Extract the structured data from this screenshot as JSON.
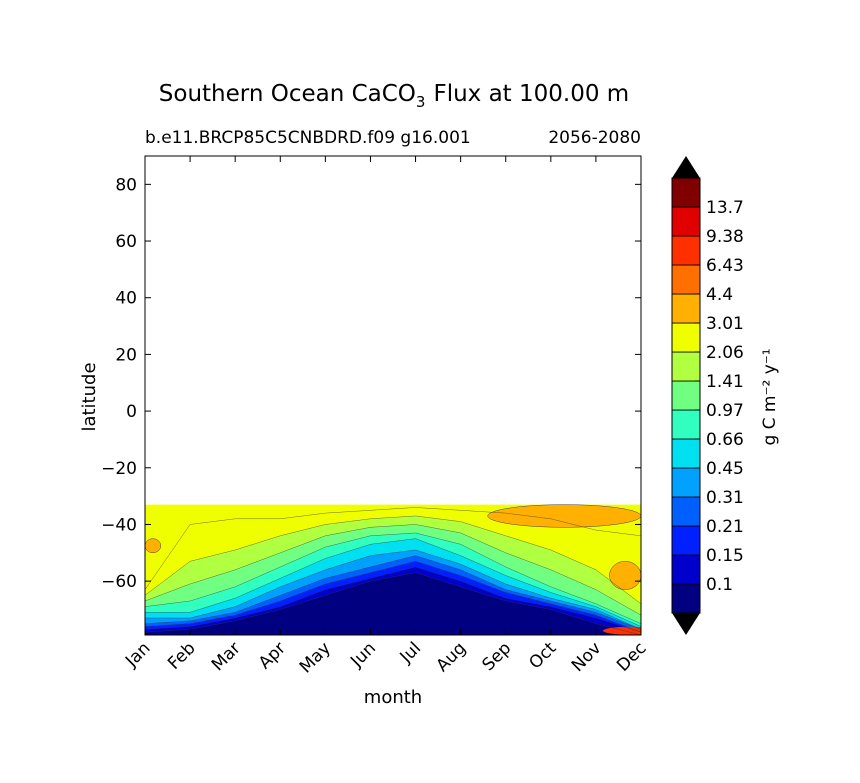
{
  "chart_data": {
    "type": "heatmap",
    "title_prefix": "Southern Ocean CaCO",
    "title_sub": "3",
    "title_suffix": "Flux at 100.00 m",
    "subtitle_left": "b.e11.BRCP85C5CNBDRD.f09 g16.001",
    "subtitle_right": "2056-2080",
    "xlabel": "month",
    "ylabel": "latitude",
    "x_categories": [
      "Jan",
      "Feb",
      "Mar",
      "Apr",
      "May",
      "Jun",
      "Jul",
      "Aug",
      "Sep",
      "Oct",
      "Nov",
      "Dec"
    ],
    "y_ticks": [
      80,
      60,
      40,
      20,
      0,
      -20,
      -40,
      -60
    ],
    "ylim": [
      -79,
      90
    ],
    "data_lat_range": [
      -79,
      -33
    ],
    "colorbar": {
      "label": "g C m⁻² y⁻¹",
      "levels": [
        "0.1",
        "0.15",
        "0.21",
        "0.31",
        "0.45",
        "0.66",
        "0.97",
        "1.41",
        "2.06",
        "3.01",
        "4.4",
        "6.43",
        "9.38",
        "13.7"
      ],
      "level_values": [
        0.1,
        0.15,
        0.21,
        0.31,
        0.45,
        0.66,
        0.97,
        1.41,
        2.06,
        3.01,
        4.4,
        6.43,
        9.38,
        13.7
      ],
      "colors": [
        "#000080",
        "#0000cd",
        "#0020ff",
        "#0060ff",
        "#00a0ff",
        "#00e0f0",
        "#30ffc0",
        "#70ff80",
        "#b0ff40",
        "#f0ff00",
        "#ffb000",
        "#ff7000",
        "#ff3000",
        "#e00000",
        "#800000"
      ]
    },
    "contour_boundaries": {
      "note": "latitude (deg) of each flux-level boundary per month",
      "months": [
        "Jan",
        "Feb",
        "Mar",
        "Apr",
        "May",
        "Jun",
        "Jul",
        "Aug",
        "Sep",
        "Oct",
        "Nov",
        "Dec"
      ],
      "levels": [
        {
          "value": 0.1,
          "lat": [
            -78,
            -77,
            -74,
            -70,
            -65,
            -60,
            -57,
            -62,
            -67,
            -70,
            -75,
            -79
          ]
        },
        {
          "value": 0.15,
          "lat": [
            -77,
            -76,
            -73,
            -69,
            -63,
            -59,
            -55,
            -60,
            -66,
            -69,
            -73,
            -78
          ]
        },
        {
          "value": 0.21,
          "lat": [
            -76,
            -75,
            -72,
            -67,
            -61,
            -57,
            -53,
            -58,
            -64,
            -68,
            -72,
            -78
          ]
        },
        {
          "value": 0.31,
          "lat": [
            -75,
            -74,
            -71,
            -65,
            -59,
            -55,
            -51,
            -56,
            -63,
            -67,
            -71,
            -77
          ]
        },
        {
          "value": 0.45,
          "lat": [
            -73,
            -73,
            -69,
            -62,
            -56,
            -51,
            -49,
            -54,
            -61,
            -66,
            -70,
            -77
          ]
        },
        {
          "value": 0.66,
          "lat": [
            -71,
            -71,
            -66,
            -59,
            -52,
            -47,
            -45,
            -51,
            -58,
            -64,
            -69,
            -76
          ]
        },
        {
          "value": 0.97,
          "lat": [
            -69,
            -67,
            -62,
            -55,
            -48,
            -44,
            -43,
            -47,
            -55,
            -62,
            -68,
            -75
          ]
        },
        {
          "value": 1.41,
          "lat": [
            -67,
            -61,
            -56,
            -50,
            -44,
            -41,
            -40,
            -43,
            -50,
            -56,
            -63,
            -72
          ]
        },
        {
          "value": 2.06,
          "lat": [
            -65,
            -53,
            -49,
            -44,
            -40,
            -38,
            -37,
            -39,
            -44,
            -49,
            -56,
            -68
          ]
        },
        {
          "value": 3.01,
          "lat": [
            -63,
            -40,
            -38,
            -38,
            -36,
            -35,
            -34,
            -35,
            -36,
            -38,
            -42,
            -44
          ]
        }
      ]
    }
  }
}
